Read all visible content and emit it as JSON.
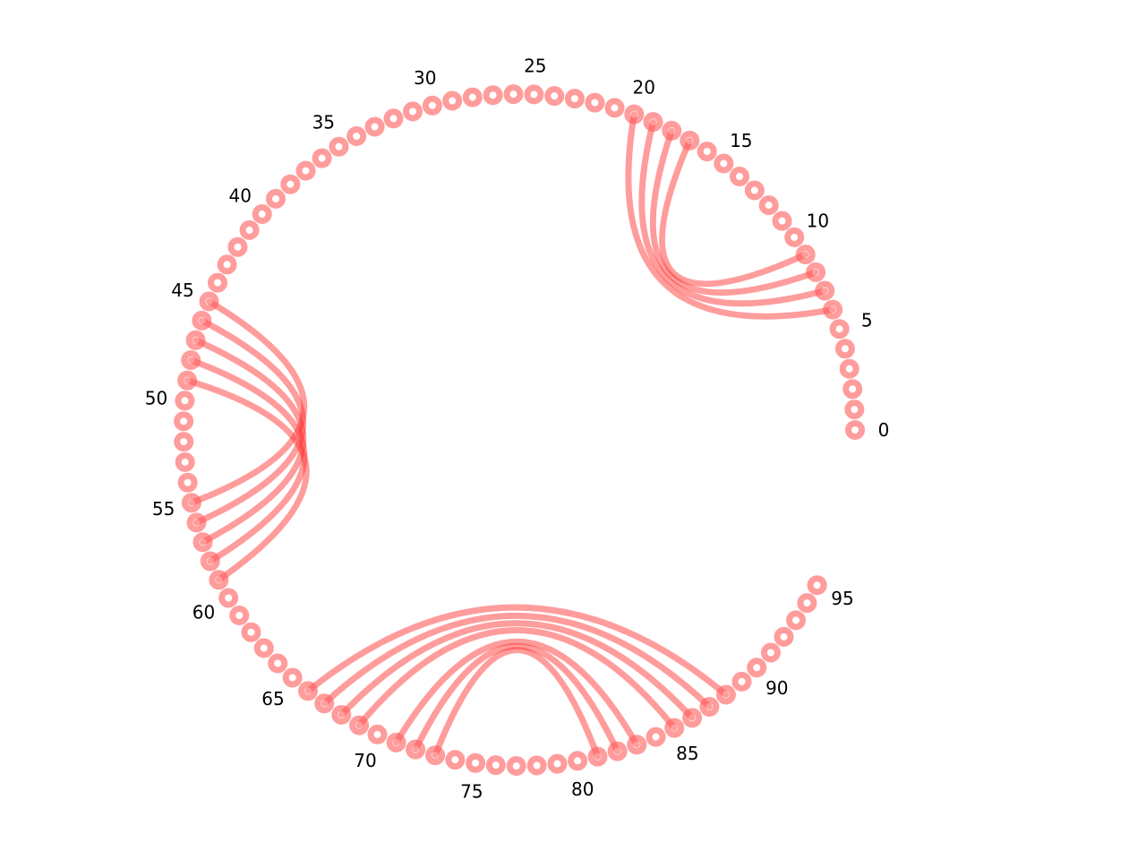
{
  "chart_data": {
    "type": "circular-arc-diagram",
    "node_count": 96,
    "tick_labels": [
      "0",
      "5",
      "10",
      "15",
      "20",
      "25",
      "30",
      "35",
      "40",
      "45",
      "50",
      "55",
      "60",
      "65",
      "70",
      "75",
      "80",
      "85",
      "90",
      "95"
    ],
    "links": [
      [
        6,
        20
      ],
      [
        7,
        19
      ],
      [
        8,
        18
      ],
      [
        9,
        17
      ],
      [
        45,
        55
      ],
      [
        46,
        56
      ],
      [
        47,
        57
      ],
      [
        48,
        58
      ],
      [
        49,
        59
      ],
      [
        66,
        88
      ],
      [
        67,
        87
      ],
      [
        68,
        86
      ],
      [
        69,
        85
      ],
      [
        71,
        83
      ],
      [
        72,
        82
      ],
      [
        73,
        81
      ]
    ],
    "colors": {
      "node": "#ff5a5a",
      "link": "#ff3030"
    }
  }
}
